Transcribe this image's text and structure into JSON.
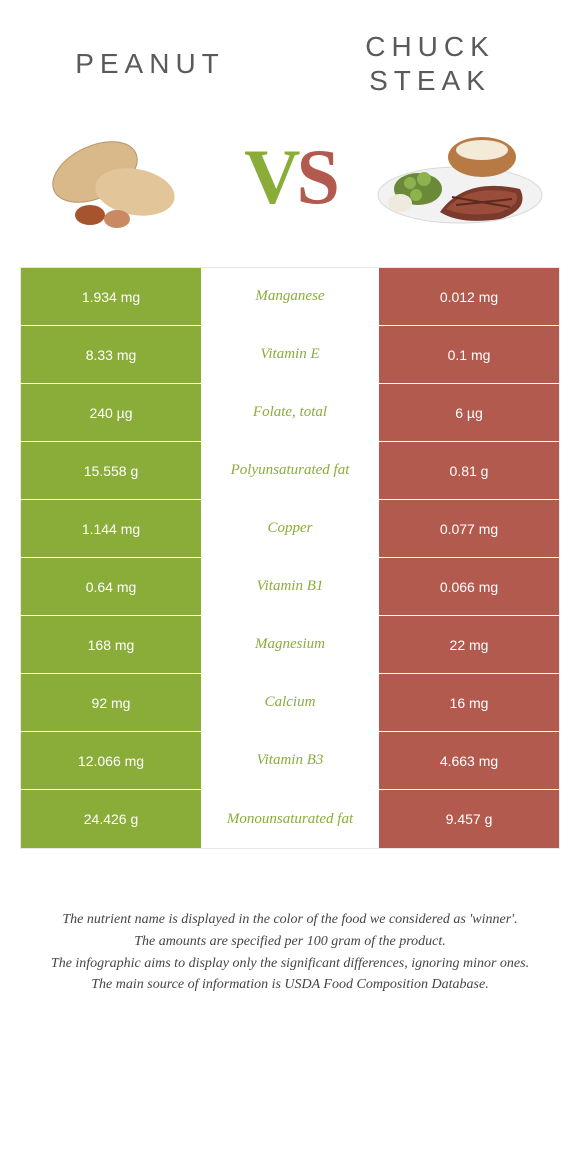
{
  "colors": {
    "left_food": "#8aad3a",
    "right_food": "#b35a4f",
    "left_cell_bg": "#8aad3a",
    "right_cell_bg": "#b35a4f",
    "mid_bg": "#ffffff",
    "row_border": "#ffffff"
  },
  "header": {
    "left_title": "Peanut",
    "right_title": "Chuck steak",
    "vs_v": "V",
    "vs_s": "S"
  },
  "rows": [
    {
      "left": "1.934 mg",
      "name": "Manganese",
      "right": "0.012 mg",
      "winner": "left"
    },
    {
      "left": "8.33 mg",
      "name": "Vitamin E",
      "right": "0.1 mg",
      "winner": "left"
    },
    {
      "left": "240 µg",
      "name": "Folate, total",
      "right": "6 µg",
      "winner": "left"
    },
    {
      "left": "15.558 g",
      "name": "Polyunsaturated fat",
      "right": "0.81 g",
      "winner": "left"
    },
    {
      "left": "1.144 mg",
      "name": "Copper",
      "right": "0.077 mg",
      "winner": "left"
    },
    {
      "left": "0.64 mg",
      "name": "Vitamin B1",
      "right": "0.066 mg",
      "winner": "left"
    },
    {
      "left": "168 mg",
      "name": "Magnesium",
      "right": "22 mg",
      "winner": "left"
    },
    {
      "left": "92 mg",
      "name": "Calcium",
      "right": "16 mg",
      "winner": "left"
    },
    {
      "left": "12.066 mg",
      "name": "Vitamin B3",
      "right": "4.663 mg",
      "winner": "left"
    },
    {
      "left": "24.426 g",
      "name": "Monounsaturated fat",
      "right": "9.457 g",
      "winner": "left"
    }
  ],
  "footer": {
    "line1": "The nutrient name is displayed in the color of the food we considered as 'winner'.",
    "line2": "The amounts are specified per 100 gram of the product.",
    "line3": "The infographic aims to display only the significant differences, ignoring minor ones.",
    "line4": "The main source of information is USDA Food Composition Database."
  }
}
